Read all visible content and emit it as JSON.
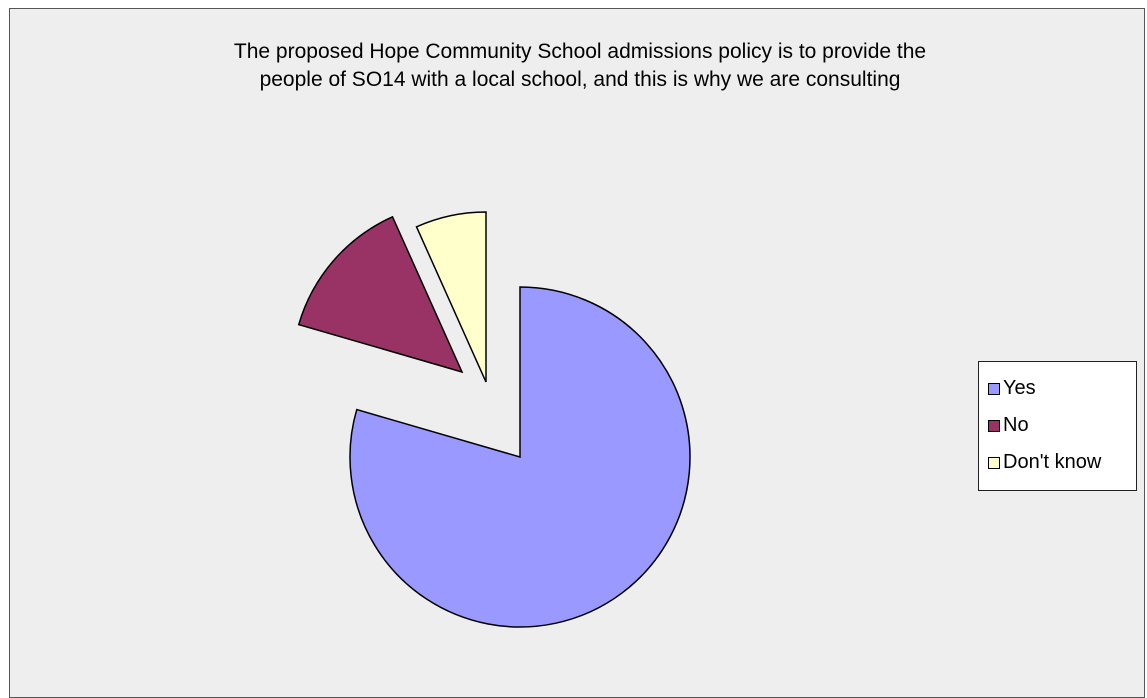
{
  "chart_data": {
    "type": "pie",
    "title": "The proposed Hope Community School admissions policy is to provide the people of SO14 with a local school, and this is why we are consulting",
    "title_lines": [
      "The proposed Hope Community School admissions policy is to provide the",
      "people of SO14 with a local school, and this is why we are consulting"
    ],
    "categories": [
      "Yes",
      "No",
      "Don't know"
    ],
    "values": [
      79.5,
      13.8,
      6.7
    ],
    "colors": [
      "#9999ff",
      "#993366",
      "#ffffcc"
    ],
    "exploded": [
      true,
      true,
      true
    ],
    "legend_position": "right"
  }
}
